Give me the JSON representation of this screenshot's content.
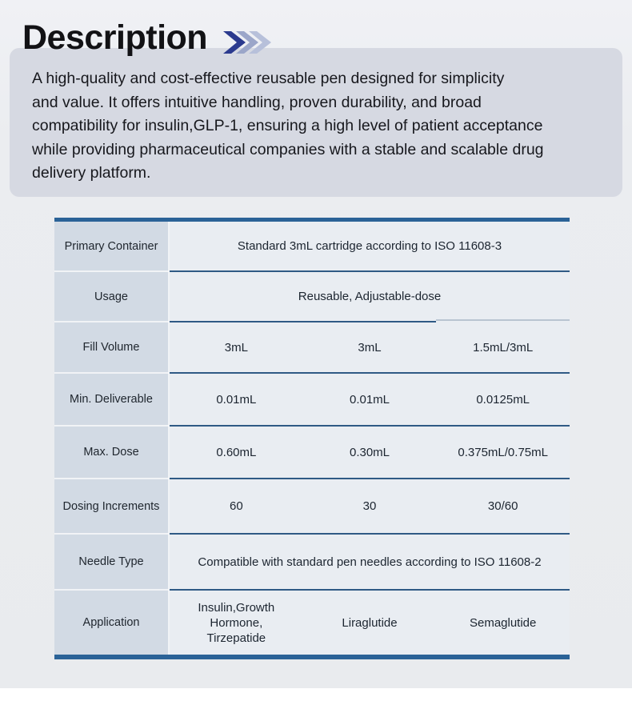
{
  "page": {
    "title": "Description"
  },
  "icons": {
    "header_icon": "triple-chevron-right-icon"
  },
  "colors": {
    "accent_border_blue": "#2a6297",
    "divider_blue": "#2f5a85",
    "divider_light_step": "#b9c4d1",
    "chevron_dark": "#2b3a8e",
    "chevron_mid": "#9ba6c9",
    "chevron_light": "#b7c0da",
    "desc_panel_bg": "#d6d9e2",
    "label_cell_bg": "#d2dae4",
    "value_cell_bg": "#e9edf2",
    "section_bg": "#e9ebee"
  },
  "description": {
    "text": "A high-quality and cost-effective reusable pen designed for simplicity\nand value. It offers intuitive handling, proven durability, and broad\ncompatibility for insulin,GLP-1, ensuring a high level of patient acceptance\nwhile providing pharmaceutical companies with a stable and scalable drug\ndelivery platform."
  },
  "table": {
    "rows": [
      {
        "label": "Primary Container",
        "span": "Standard 3mL cartridge according to ISO 11608-3"
      },
      {
        "label": "Usage",
        "span": "Reusable, Adjustable-dose"
      },
      {
        "label": "Fill Volume",
        "cols": [
          "3mL",
          "3mL",
          "1.5mL/3mL"
        ]
      },
      {
        "label": "Min. Deliverable",
        "cols": [
          "0.01mL",
          "0.01mL",
          "0.0125mL"
        ]
      },
      {
        "label": "Max. Dose",
        "cols": [
          "0.60mL",
          "0.30mL",
          "0.375mL/0.75mL"
        ]
      },
      {
        "label": "Dosing Increments",
        "cols": [
          "60",
          "30",
          "30/60"
        ]
      },
      {
        "label": "Needle Type",
        "span": "Compatible with standard pen needles according to ISO 11608-2"
      },
      {
        "label": "Application",
        "cols": [
          "Insulin,Growth\nHormone,\nTirzepatide",
          "Liraglutide",
          "Semaglutide"
        ]
      }
    ]
  }
}
